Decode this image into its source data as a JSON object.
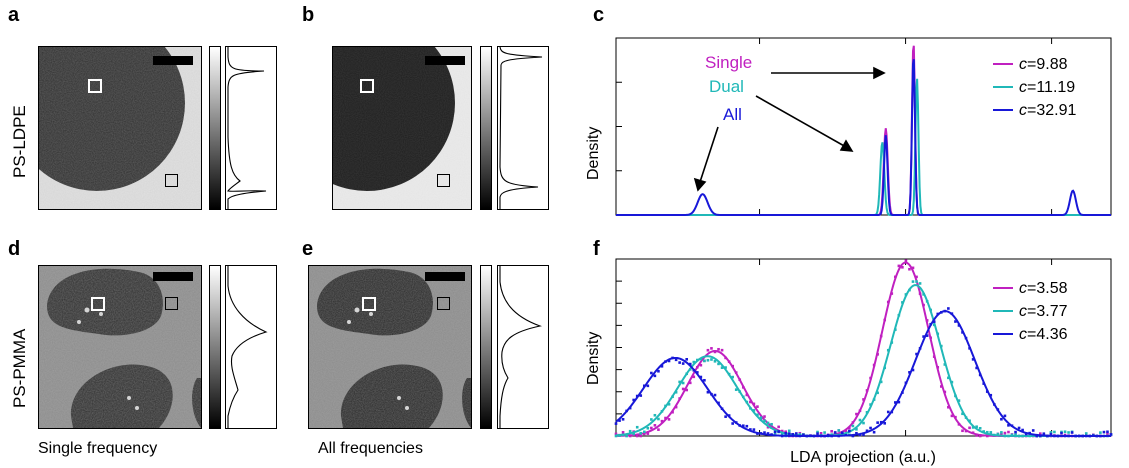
{
  "panels": {
    "a": "a",
    "b": "b",
    "c": "c",
    "d": "d",
    "e": "e",
    "f": "f"
  },
  "row_labels": {
    "top": "PS-LDPE",
    "bottom": "PS-PMMA"
  },
  "captions": {
    "left": "Single frequency",
    "middle": "All frequencies"
  },
  "annotations": {
    "single": "Single",
    "dual": "Dual",
    "all": "All",
    "single_color": "#c020c0",
    "dual_color": "#20b8b8",
    "all_color": "#1818d8"
  },
  "colors": {
    "magenta": "#c020c0",
    "cyan": "#20b8b8",
    "blue": "#1818d8"
  },
  "chart_data": [
    {
      "panel": "c",
      "type": "line",
      "xlabel": "",
      "ylabel": "Density",
      "legend_position": "top-right",
      "series": [
        {
          "name": "c=9.88",
          "legend_c": "c",
          "legend_val": "=9.88",
          "color": "#c020c0",
          "peaks": [
            {
              "center": 0.545,
              "width": 0.004,
              "height": 0.5
            },
            {
              "center": 0.601,
              "width": 0.003,
              "height": 1.0
            }
          ]
        },
        {
          "name": "c=11.19",
          "legend_c": "c",
          "legend_val": "=11.19",
          "color": "#20b8b8",
          "peaks": [
            {
              "center": 0.538,
              "width": 0.004,
              "height": 0.42
            },
            {
              "center": 0.608,
              "width": 0.003,
              "height": 0.79
            }
          ]
        },
        {
          "name": "c=32.91",
          "legend_c": "c",
          "legend_val": "=32.91",
          "color": "#1818d8",
          "peaks": [
            {
              "center": 0.175,
              "width": 0.01,
              "height": 0.12
            },
            {
              "center": 0.545,
              "width": 0.0035,
              "height": 0.46
            },
            {
              "center": 0.601,
              "width": 0.003,
              "height": 0.92
            },
            {
              "center": 0.923,
              "width": 0.006,
              "height": 0.14
            }
          ]
        }
      ]
    },
    {
      "panel": "f",
      "type": "line",
      "xlabel": "LDA projection (a.u.)",
      "ylabel": "Density",
      "legend_position": "top-right",
      "series": [
        {
          "name": "c=3.58",
          "legend_c": "c",
          "legend_val": "=3.58",
          "color": "#c020c0",
          "peaks": [
            {
              "center": 0.2,
              "width": 0.055,
              "height": 0.49
            },
            {
              "center": 0.585,
              "width": 0.047,
              "height": 1.0
            }
          ]
        },
        {
          "name": "c=3.77",
          "legend_c": "c",
          "legend_val": "=3.77",
          "color": "#20b8b8",
          "peaks": [
            {
              "center": 0.185,
              "width": 0.06,
              "height": 0.46
            },
            {
              "center": 0.605,
              "width": 0.05,
              "height": 0.87
            }
          ]
        },
        {
          "name": "c=4.36",
          "legend_c": "c",
          "legend_val": "=4.36",
          "color": "#1818d8",
          "peaks": [
            {
              "center": 0.12,
              "width": 0.065,
              "height": 0.45
            },
            {
              "center": 0.665,
              "width": 0.06,
              "height": 0.72
            }
          ]
        }
      ]
    }
  ]
}
